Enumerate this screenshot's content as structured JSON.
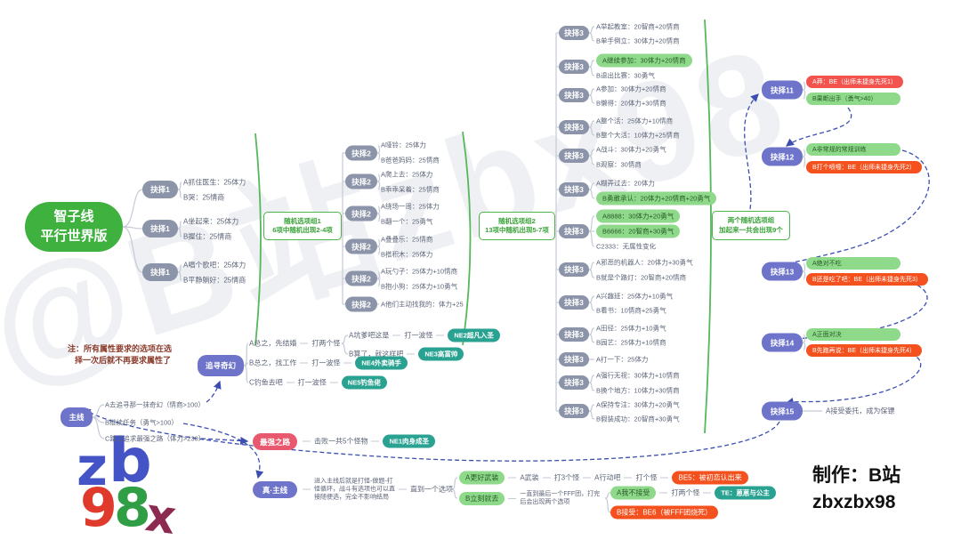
{
  "watermark": "@B站zbx98",
  "credit": {
    "line1": "制作：B站",
    "line2": "zbxzbx98"
  },
  "note": {
    "line1": "注：所有属性要求的选项在选",
    "line2": "择一次后就不再要求属性了"
  },
  "root": {
    "line1": "智子线",
    "line2": "平行世界版"
  },
  "logo": {
    "letters": [
      "z",
      "b",
      "9",
      "8",
      "x"
    ]
  },
  "groups": [
    {
      "line1": "随机选项组1",
      "line2": "6项中随机出现2-4项"
    },
    {
      "line1": "随机选项组2",
      "line2": "13项中随机出现5-7项"
    },
    {
      "line1": "两个随机选项组",
      "line2": "加起来一共会出现9个"
    }
  ],
  "stage1": [
    {
      "pill": "抉择1",
      "options": [
        "A抓住医生：25体力",
        "B哭：25情商"
      ]
    },
    {
      "pill": "抉择1",
      "options": [
        "A坐起来：25体力",
        "B握住：25情商"
      ]
    },
    {
      "pill": "抉择1",
      "options": [
        "A唱个歌吧：25体力",
        "B平静躺好：25情商"
      ]
    }
  ],
  "stage2": [
    {
      "pill": "抉择2",
      "options": [
        "A哑铃：25体力",
        "B爸爸妈妈：25情商"
      ]
    },
    {
      "pill": "抉择2",
      "options": [
        "A爬上去：25体力",
        "B乖乖呆着：25情商"
      ]
    },
    {
      "pill": "抉择2",
      "options": [
        "A绕场一周：25体力",
        "B翻一个：25勇气"
      ]
    },
    {
      "pill": "抉择2",
      "options": [
        "A叠叠乐：25情商",
        "B搭积木：25体力"
      ]
    },
    {
      "pill": "抉择2",
      "options": [
        "A玩勺子：25体力+10情商",
        "B抱小狗：25体力+10勇气"
      ]
    },
    {
      "pill": "抉择2",
      "options": [
        "A他们主动找我的：体力+25"
      ]
    }
  ],
  "stage3": [
    {
      "pill": "抉择3",
      "options": [
        {
          "text": "A举起教室：20智商+20情商"
        },
        {
          "text": "B单手倒立：30体力+20情商"
        }
      ]
    },
    {
      "pill": "抉择3",
      "options": [
        {
          "text": "A继续参加：30体力+20情商",
          "style": "green"
        },
        {
          "text": "B退出比赛：30勇气"
        }
      ]
    },
    {
      "pill": "抉择3",
      "options": [
        {
          "text": "A参加：30体力+20情商"
        },
        {
          "text": "B懒得：20体力+30情商"
        }
      ]
    },
    {
      "pill": "抉择3",
      "options": [
        {
          "text": "A整个活：25体力+10情商"
        },
        {
          "text": "B整个大活：10体力+25情商"
        }
      ]
    },
    {
      "pill": "抉择3",
      "options": [
        {
          "text": "A战斗：30体力+20勇气"
        },
        {
          "text": "B观察：30情商"
        }
      ]
    },
    {
      "pill": "抉择3",
      "options": [
        {
          "text": "A糊弄过去：20体力"
        },
        {
          "text": "B勇敢承认：20体力+20情商+20勇气",
          "style": "green"
        }
      ]
    },
    {
      "pill": "抉择3",
      "options": [
        {
          "text": "A8888：30体力+20勇气",
          "style": "green"
        },
        {
          "text": "B6666：20智商+30勇气",
          "style": "green"
        },
        {
          "text": "C2333：无属性变化"
        }
      ]
    },
    {
      "pill": "抉择3",
      "options": [
        {
          "text": "A邪恶的机器人：20体力+30勇气"
        },
        {
          "text": "B就是个路灯：20智商+20情商"
        }
      ]
    },
    {
      "pill": "抉择3",
      "options": [
        {
          "text": "A兴趣班：25体力+10勇气"
        },
        {
          "text": "B看书：10情商+25勇气"
        }
      ]
    },
    {
      "pill": "抉择3",
      "options": [
        {
          "text": "A田径：25体力+10勇气"
        },
        {
          "text": "B园艺：25体力+10情商"
        }
      ]
    },
    {
      "pill": "抉择3",
      "options": [
        {
          "text": "A打一下：25体力"
        }
      ]
    },
    {
      "pill": "抉择3",
      "options": [
        {
          "text": "A强行无视：30体力+10情商"
        },
        {
          "text": "B换个地方：10体力+30情商"
        }
      ]
    },
    {
      "pill": "抉择3",
      "options": [
        {
          "text": "A保持专注：30体力+20勇气"
        },
        {
          "text": "B假装成功：20智商+30勇气"
        }
      ]
    }
  ],
  "late_decisions": [
    {
      "pill": "抉择11",
      "options": [
        {
          "text": "A莽：BE（出师未捷身先死1）",
          "style": "red"
        },
        {
          "text": "B果断出手（勇气>40）",
          "style": "green"
        }
      ]
    },
    {
      "pill": "抉择12",
      "options": [
        {
          "text": "A非常规的常规训练",
          "style": "green"
        },
        {
          "text": "B打个喷嚏：BE（出师未捷身先死2）",
          "style": "orange"
        }
      ]
    },
    {
      "pill": "抉择13",
      "options": [
        {
          "text": "A绝对不吃",
          "style": "green"
        },
        {
          "text": "B还是吃了吧：BE（出师未捷身先死3）",
          "style": "orange"
        }
      ]
    },
    {
      "pill": "抉择14",
      "options": [
        {
          "text": "A正面对决",
          "style": "green"
        },
        {
          "text": "B先跑再说：BE（出师未捷身先死4）",
          "style": "orange"
        }
      ]
    },
    {
      "pill": "抉择15",
      "options": [
        {
          "text": "A接受委托，成为保镖"
        }
      ]
    }
  ],
  "mainline": {
    "pill": "主线",
    "options": [
      "A去追寻那一抹奇幻（情商>100）",
      "B继续任务（勇气>100）",
      "C踏上追求最强之路（体力>230）"
    ]
  },
  "fantasy": {
    "pill": "追寻奇幻",
    "branch1": {
      "steps": [
        "A总之，先结婚",
        "打两个怪"
      ]
    },
    "branch1a": {
      "steps": [
        "A坑爹吧这是",
        "打一波怪"
      ],
      "ending": "NE2超凡入圣"
    },
    "branch1b": {
      "steps": [
        "B算了，就这样吧"
      ],
      "ending": "NE3高富帅"
    },
    "branch2": {
      "steps": [
        "B总之，找工作",
        "打一波怪"
      ],
      "ending": "NE4外卖骑手"
    },
    "branch3": {
      "steps": [
        "C钓鱼去吧",
        "打一波怪"
      ],
      "ending": "NE5钓鱼佬"
    }
  },
  "strongest": {
    "pill": "最强之路",
    "steps": [
      "击败一共5个怪物"
    ],
    "ending": "NE1肉身成圣"
  },
  "true_main": {
    "pill": "真·主线",
    "intro_lines": [
      "进入主线后就是打怪-做题-打",
      "怪循环，战斗有选项也可以直",
      "接随便选，完全不影响结局"
    ],
    "until": "直到一个选项",
    "armed": {
      "choice": "A更好武装",
      "steps": [
        "A武装",
        "打3个怪",
        "A行动吧",
        "打个怪"
      ],
      "ending": "BE5：被初恋认出来"
    },
    "rush": {
      "choice": "B立刻就去",
      "note_lines": [
        "一直到最后一个FFF团，打完",
        "后会出现两个选项"
      ],
      "refuse": {
        "choice": "A我不接受",
        "steps": [
          "打两个怪"
        ],
        "ending": "TE：蒽蒽与公主"
      },
      "accept": {
        "text": "B接受：BE6（被FFF团烧死）"
      }
    }
  }
}
